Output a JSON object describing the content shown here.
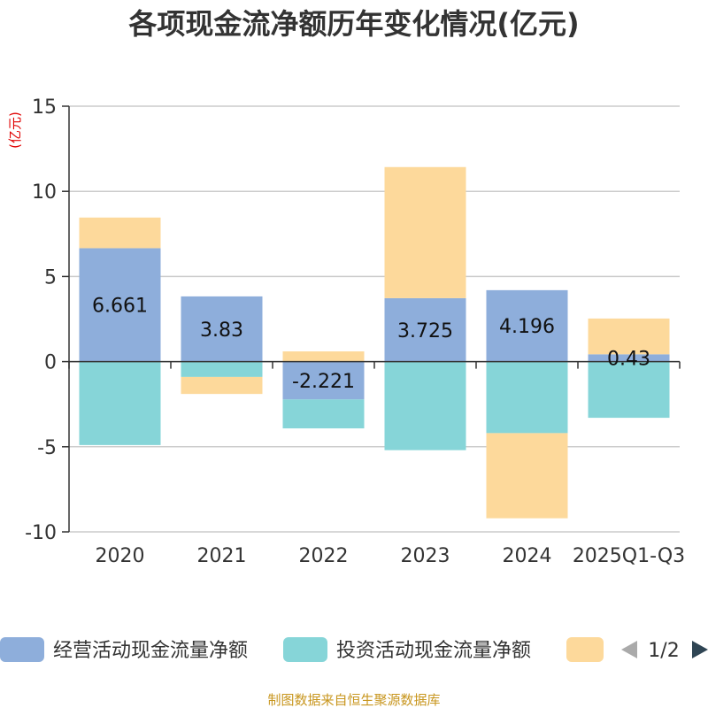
{
  "chart_data": {
    "type": "bar",
    "stacked": true,
    "title": "各项现金流净额历年变化情况(亿元)",
    "ylabel": "(亿元)",
    "xlabel": "",
    "ylim": [
      -10,
      15
    ],
    "yticks": [
      15,
      10,
      5,
      0,
      -5,
      -10
    ],
    "categories": [
      "2020",
      "2021",
      "2022",
      "2023",
      "2024",
      "2025Q1-Q3"
    ],
    "series": [
      {
        "name": "经营活动现金流量净额",
        "color": "#8eaedb",
        "values": [
          6.661,
          3.83,
          -2.221,
          3.725,
          4.196,
          0.43
        ],
        "labels": [
          "6.661",
          "3.83",
          "-2.221",
          "3.725",
          "4.196",
          "0.43"
        ]
      },
      {
        "name": "投资活动现金流量净额",
        "color": "#86d5d8",
        "values": [
          -4.9,
          -0.9,
          -1.7,
          -5.2,
          -4.2,
          -3.3
        ]
      },
      {
        "name": "",
        "color": "#fdd99b",
        "values": [
          1.8,
          -1.0,
          0.6,
          7.7,
          -5.0,
          2.1
        ]
      }
    ],
    "grid": true,
    "legend": "bottom"
  },
  "legend": {
    "page": "1/2",
    "prev_icon": "triangle-left-icon",
    "next_icon": "triangle-right-icon",
    "prev_color": "#aaaaaa",
    "next_color": "#2f4554"
  },
  "source": "制图数据来自恒生聚源数据库"
}
